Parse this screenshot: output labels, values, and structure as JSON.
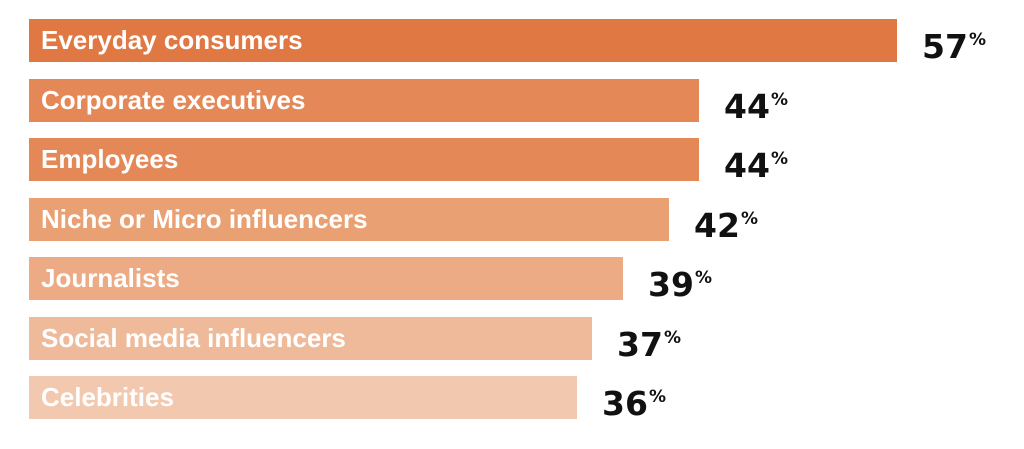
{
  "chart_data": {
    "type": "bar",
    "orientation": "horizontal",
    "categories": [
      "Everyday consumers",
      "Corporate executives",
      "Employees",
      "Niche or Micro influencers",
      "Journalists",
      "Social media influencers",
      "Celebrities"
    ],
    "values": [
      57,
      44,
      44,
      42,
      39,
      37,
      36
    ],
    "value_suffix": "%",
    "bar_colors": [
      "#e07844",
      "#e38856",
      "#e38856",
      "#e9a073",
      "#ecab84",
      "#efba9a",
      "#f2c9ae"
    ],
    "title": "",
    "xlabel": "",
    "ylabel": "",
    "grid": false,
    "legend": "none"
  }
}
